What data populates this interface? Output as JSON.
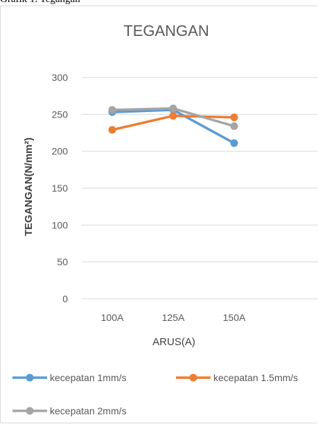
{
  "caption": "Grafik 1. Tegangan",
  "chart_data": {
    "type": "line",
    "title": "TEGANGAN",
    "xlabel": "ARUS(A)",
    "ylabel": "TEGANGAN(N/mm²)",
    "categories": [
      "100A",
      "125A",
      "150A"
    ],
    "ylim": [
      0,
      300
    ],
    "yticks": [
      0,
      50,
      100,
      150,
      200,
      250,
      300
    ],
    "grid": true,
    "legend_position": "bottom",
    "series": [
      {
        "name": "kecepatan 1mm/s",
        "color": "#5b9bd5",
        "values": [
          253,
          256,
          211
        ]
      },
      {
        "name": "kecepatan 1.5mm/s",
        "color": "#ed7d31",
        "values": [
          229,
          248,
          246
        ]
      },
      {
        "name": "kecepatan 2mm/s",
        "color": "#a5a5a5",
        "values": [
          256,
          258,
          234
        ]
      }
    ]
  }
}
